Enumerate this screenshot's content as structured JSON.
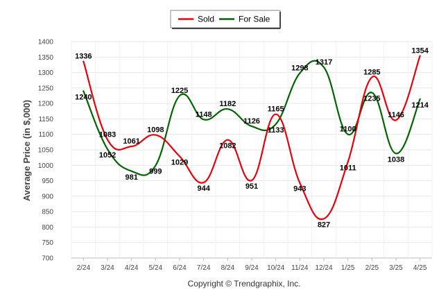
{
  "chart_data": {
    "type": "line",
    "categories": [
      "2/24",
      "3/24",
      "4/24",
      "5/24",
      "6/24",
      "7/24",
      "8/24",
      "9/24",
      "10/24",
      "11/24",
      "12/24",
      "1/25",
      "2/25",
      "3/25",
      "4/25"
    ],
    "series": [
      {
        "name": "Sold",
        "color": "#e8000b",
        "values": [
          1336,
          1083,
          1061,
          1098,
          1029,
          944,
          1082,
          951,
          1165,
          943,
          827,
          1011,
          1285,
          1146,
          1354
        ]
      },
      {
        "name": "For Sale",
        "color": "#006400",
        "values": [
          1240,
          1052,
          981,
          999,
          1225,
          1148,
          1182,
          1126,
          1133,
          1298,
          1317,
          1100,
          1235,
          1038,
          1214
        ]
      }
    ],
    "ylabel": "Average Price (in $,000)",
    "ylim": [
      700,
      1400
    ],
    "yticks": [
      700,
      750,
      800,
      850,
      900,
      950,
      1000,
      1050,
      1100,
      1150,
      1200,
      1250,
      1300,
      1350,
      1400
    ],
    "grid": true,
    "legend_position": "top-center"
  },
  "footer": {
    "copyright": "Copyright © Trendgraphix, Inc."
  }
}
